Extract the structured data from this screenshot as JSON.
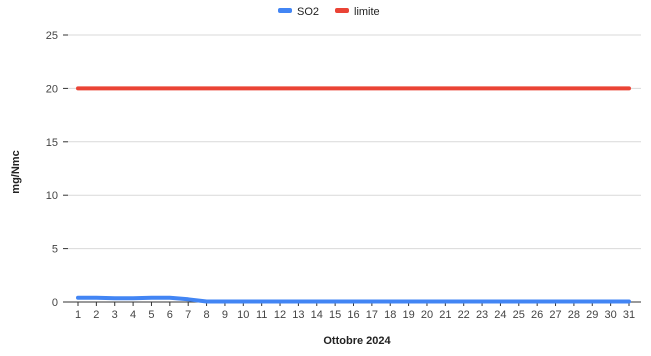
{
  "chart_data": {
    "type": "line",
    "title": "",
    "xlabel": "Ottobre 2024",
    "ylabel": "mg/Nmc",
    "ylim": [
      0,
      25
    ],
    "yticks": [
      0,
      5,
      10,
      15,
      20,
      25
    ],
    "x": [
      1,
      2,
      3,
      4,
      5,
      6,
      7,
      8,
      9,
      10,
      11,
      12,
      13,
      14,
      15,
      16,
      17,
      18,
      19,
      20,
      21,
      22,
      23,
      24,
      25,
      26,
      27,
      28,
      29,
      30,
      31
    ],
    "grid": true,
    "legend_position": "top",
    "series": [
      {
        "name": "SO2",
        "color": "#4285f4",
        "values": [
          0.4,
          0.4,
          0.35,
          0.35,
          0.4,
          0.4,
          0.25,
          0.05,
          0.05,
          0.05,
          0.05,
          0.05,
          0.05,
          0.05,
          0.05,
          0.05,
          0.05,
          0.05,
          0.05,
          0.05,
          0.05,
          0.05,
          0.05,
          0.05,
          0.05,
          0.05,
          0.05,
          0.05,
          0.05,
          0.05,
          0.05
        ]
      },
      {
        "name": "limite",
        "color": "#ea4335",
        "values": [
          20,
          20,
          20,
          20,
          20,
          20,
          20,
          20,
          20,
          20,
          20,
          20,
          20,
          20,
          20,
          20,
          20,
          20,
          20,
          20,
          20,
          20,
          20,
          20,
          20,
          20,
          20,
          20,
          20,
          20,
          20
        ]
      }
    ]
  }
}
